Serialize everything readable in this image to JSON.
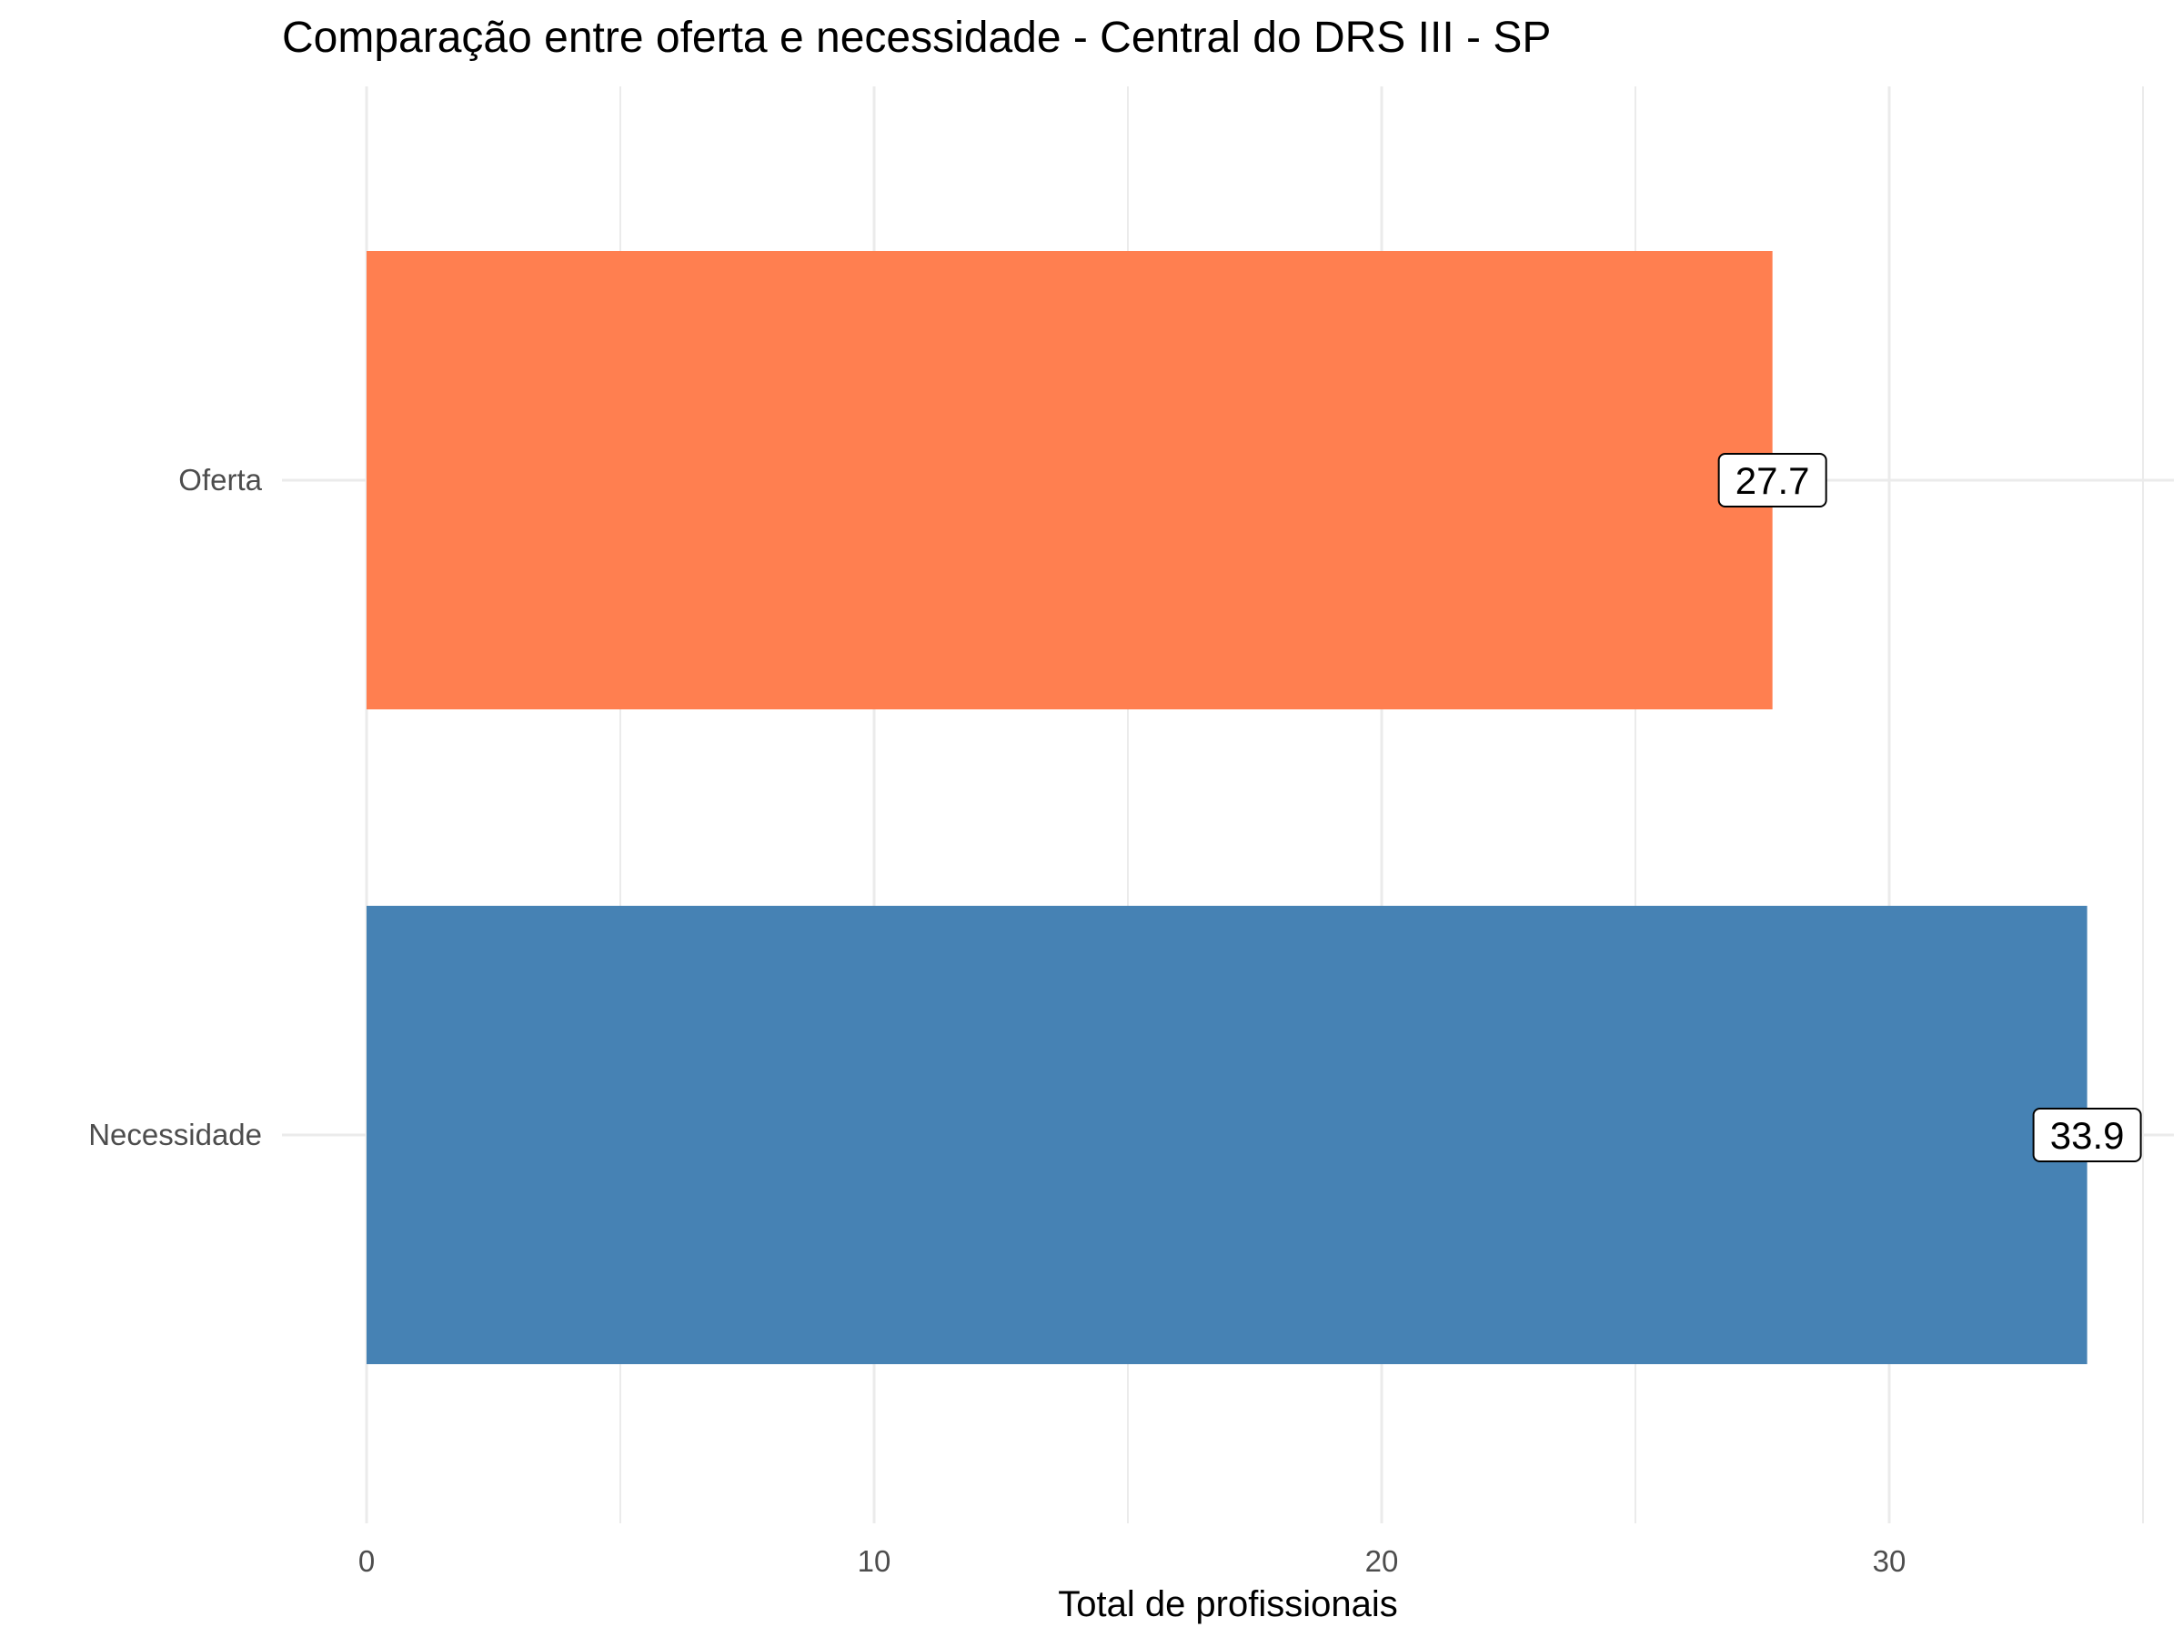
{
  "chart_data": {
    "type": "bar",
    "orientation": "horizontal",
    "title": "Comparação entre oferta e necessidade - Central do DRS III - SP",
    "xlabel": "Total de profissionais",
    "ylabel": "",
    "categories": [
      "Oferta",
      "Necessidade"
    ],
    "values": [
      27.7,
      33.9
    ],
    "data_labels": [
      "27.7",
      "33.9"
    ],
    "colors": [
      "#FF7F50",
      "#4682B4"
    ],
    "xlim": [
      0,
      35
    ],
    "x_ticks": [
      0,
      10,
      20,
      30
    ],
    "x_tick_labels": [
      "0",
      "10",
      "20",
      "30"
    ],
    "grid": true,
    "legend": "none"
  }
}
